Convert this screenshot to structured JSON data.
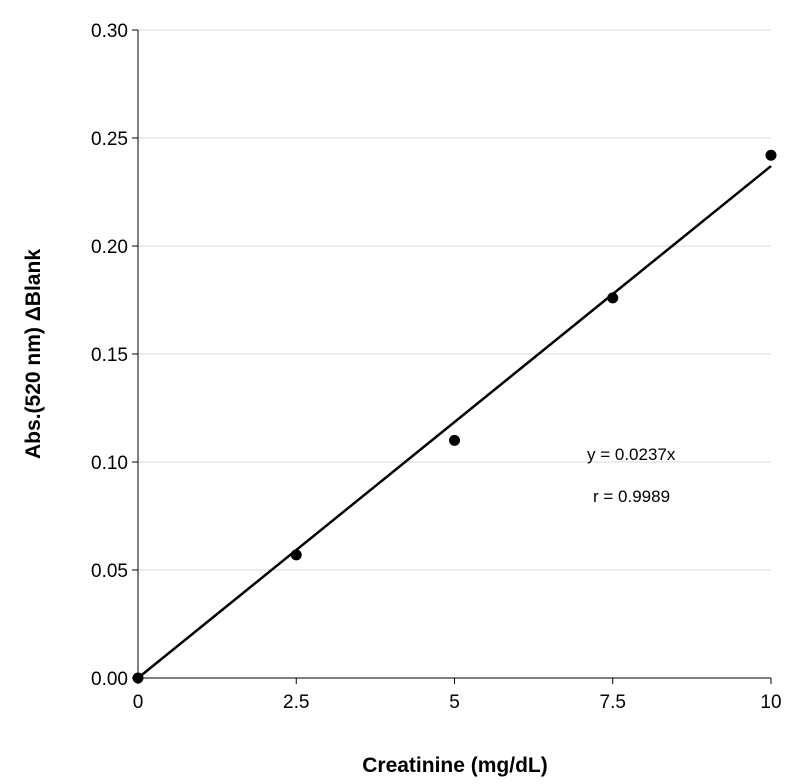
{
  "chart_data": {
    "type": "scatter",
    "title": "",
    "xlabel": "Creatinine (mg/dL)",
    "ylabel": "Abs.(520 nm) ΔBlank",
    "xlim": [
      0,
      10
    ],
    "ylim": [
      0,
      0.3
    ],
    "x_ticks": [
      "0",
      "2.5",
      "5",
      "7.5",
      "10"
    ],
    "y_ticks": [
      "0.00",
      "0.05",
      "0.10",
      "0.15",
      "0.20",
      "0.25",
      "0.30"
    ],
    "grid": "horizontal",
    "series": [
      {
        "x": [
          0,
          2.5,
          5,
          7.5,
          10
        ],
        "y": [
          0,
          0.057,
          0.11,
          0.176,
          0.242
        ],
        "marker": "circle",
        "color": "#000000"
      }
    ],
    "trendline": {
      "type": "linear",
      "slope": 0.0237,
      "intercept": 0,
      "color": "#000000"
    },
    "annotations": [
      "y = 0.0237x",
      "r = 0.9989"
    ],
    "gridline_color": "#d9d9d9"
  }
}
